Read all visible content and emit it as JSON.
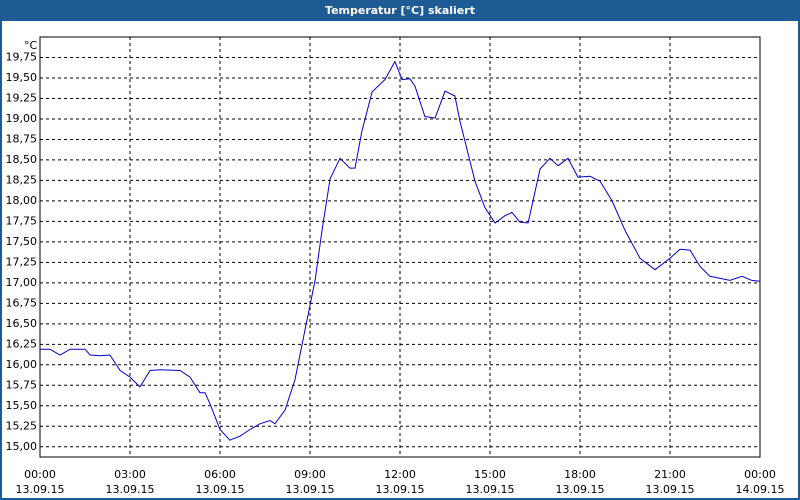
{
  "chart_data": {
    "type": "line",
    "title": "Temperatur [°C] skaliert",
    "y_unit": "°C",
    "color": "#0000cc",
    "grid": true,
    "xlim": [
      0,
      24
    ],
    "ylim": [
      14.875,
      20.0
    ],
    "xticks": [
      {
        "value": 0,
        "label": "00:00",
        "sublabel": "13.09.15"
      },
      {
        "value": 3,
        "label": "03:00",
        "sublabel": "13.09.15"
      },
      {
        "value": 6,
        "label": "06:00",
        "sublabel": "13.09.15"
      },
      {
        "value": 9,
        "label": "09:00",
        "sublabel": "13.09.15"
      },
      {
        "value": 12,
        "label": "12:00",
        "sublabel": "13.09.15"
      },
      {
        "value": 15,
        "label": "15:00",
        "sublabel": "13.09.15"
      },
      {
        "value": 18,
        "label": "18:00",
        "sublabel": "13.09.15"
      },
      {
        "value": 21,
        "label": "21:00",
        "sublabel": "13.09.15"
      },
      {
        "value": 24,
        "label": "00:00",
        "sublabel": "14.09.15"
      }
    ],
    "yticks": [
      {
        "value": 15.0,
        "label": "15,00"
      },
      {
        "value": 15.25,
        "label": "15,25"
      },
      {
        "value": 15.5,
        "label": "15,50"
      },
      {
        "value": 15.75,
        "label": "15,75"
      },
      {
        "value": 16.0,
        "label": "16,00"
      },
      {
        "value": 16.25,
        "label": "16,25"
      },
      {
        "value": 16.5,
        "label": "16,50"
      },
      {
        "value": 16.75,
        "label": "16,75"
      },
      {
        "value": 17.0,
        "label": "17,00"
      },
      {
        "value": 17.25,
        "label": "17,25"
      },
      {
        "value": 17.5,
        "label": "17,50"
      },
      {
        "value": 17.75,
        "label": "17,75"
      },
      {
        "value": 18.0,
        "label": "18,00"
      },
      {
        "value": 18.25,
        "label": "18,25"
      },
      {
        "value": 18.5,
        "label": "18,50"
      },
      {
        "value": 18.75,
        "label": "18,75"
      },
      {
        "value": 19.0,
        "label": "19,00"
      },
      {
        "value": 19.25,
        "label": "19,25"
      },
      {
        "value": 19.5,
        "label": "19,50"
      },
      {
        "value": 19.75,
        "label": "19,75"
      }
    ],
    "x": [
      0,
      0.33,
      0.67,
      1.0,
      1.5,
      1.67,
      2.0,
      2.33,
      2.67,
      3.0,
      3.33,
      3.67,
      4.0,
      4.67,
      5.0,
      5.33,
      5.5,
      5.67,
      6.0,
      6.33,
      6.67,
      7.0,
      7.33,
      7.67,
      7.83,
      8.17,
      8.5,
      8.83,
      9.17,
      9.4,
      9.67,
      10.0,
      10.33,
      10.5,
      10.73,
      11.07,
      11.5,
      11.83,
      12.07,
      12.33,
      12.5,
      12.83,
      13.17,
      13.5,
      13.83,
      14.0,
      14.5,
      14.83,
      15.17,
      15.5,
      15.73,
      16.0,
      16.27,
      16.67,
      17.0,
      17.27,
      17.6,
      17.93,
      18.33,
      18.67,
      19.07,
      19.5,
      20.0,
      20.5,
      21.0,
      21.33,
      21.67,
      22.0,
      22.33,
      23.0,
      23.4,
      23.73,
      24.0
    ],
    "values": [
      16.19,
      16.19,
      16.12,
      16.19,
      16.19,
      16.12,
      16.11,
      16.12,
      15.93,
      15.85,
      15.73,
      15.93,
      15.94,
      15.93,
      15.85,
      15.66,
      15.66,
      15.52,
      15.21,
      15.08,
      15.13,
      15.21,
      15.28,
      15.32,
      15.28,
      15.45,
      15.82,
      16.42,
      17.03,
      17.64,
      18.27,
      18.52,
      18.4,
      18.4,
      18.85,
      19.33,
      19.48,
      19.7,
      19.48,
      19.49,
      19.4,
      19.03,
      19.01,
      19.34,
      19.28,
      18.97,
      18.24,
      17.92,
      17.73,
      17.82,
      17.86,
      17.74,
      17.73,
      18.39,
      18.52,
      18.43,
      18.52,
      18.29,
      18.3,
      18.24,
      18.0,
      17.64,
      17.3,
      17.16,
      17.3,
      17.41,
      17.4,
      17.2,
      17.08,
      17.03,
      17.08,
      17.03,
      17.02
    ]
  }
}
